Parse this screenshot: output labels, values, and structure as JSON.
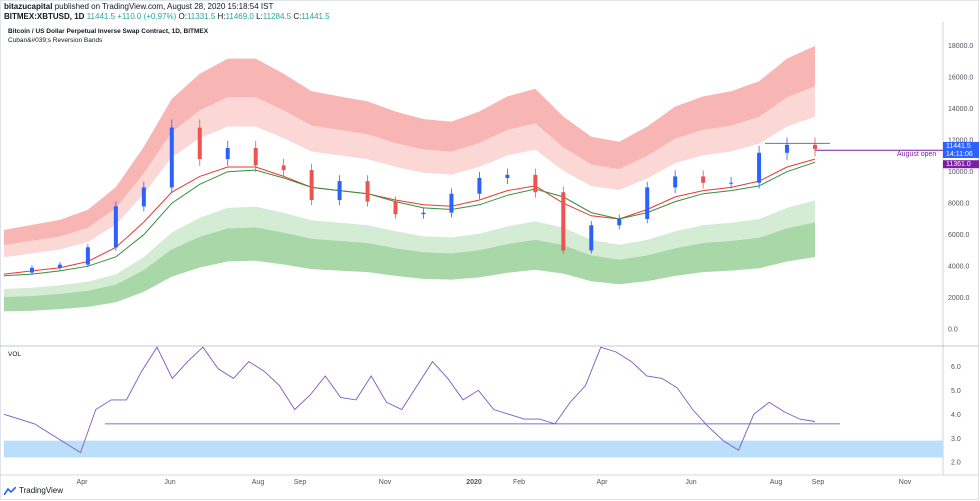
{
  "header": {
    "publisher": "bitazucapital",
    "published_text": "published on TradingView.com, August 28, 2020 15:18:54 IST",
    "symbol": "BITMEX:XBTUSD, 1D",
    "last": "11441.5",
    "change": "+110.0 (+0.97%)",
    "o_label": "O:",
    "o": "11331.5",
    "h_label": "H:",
    "h": "11469.0",
    "l_label": "L:",
    "l": "11284.5",
    "c_label": "C:",
    "c": "11441.5"
  },
  "footer": {
    "brand": "TradingView"
  },
  "colors": {
    "up": "#26a69a",
    "down": "#ef5350",
    "candle_up": "#2962ff",
    "band_red_outer": "#f7b6b3",
    "band_red_inner": "#fbd7d5",
    "band_green_outer": "#a8d8a8",
    "band_green_inner": "#d3ecd3",
    "mid_red": "#e53935",
    "mid_green": "#388e3c",
    "vol_line": "#7e57c2",
    "vol_band": "#bbdefb"
  },
  "chart_data": [
    {
      "type": "line",
      "title": "Bitcoin / US Dollar Perpetual Inverse Swap Contract, 1D, BITMEX",
      "subtitle": "Cuban&#039;s Reversion Bands",
      "x_ticks": [
        "Apr",
        "Jun",
        "Aug",
        "Sep",
        "Nov",
        "2020",
        "Feb",
        "Apr",
        "Jun",
        "Aug",
        "Sep",
        "Nov"
      ],
      "y_ticks": [
        "0.0",
        "2000.0",
        "4000.0",
        "6000.0",
        "8000.0",
        "10000.0",
        "12000.0",
        "14000.0",
        "16000.0",
        "18000.0"
      ],
      "ylim": [
        -1000,
        19500
      ],
      "price_labels": {
        "last": "11441.5",
        "countdown": "14:11:06",
        "level": "11361.0"
      },
      "annotation": "August open",
      "series": [
        {
          "values": [
            3600,
            3900,
            4100,
            5200,
            7800,
            9000,
            12800,
            10800,
            11500,
            10400,
            10100,
            8200,
            9400,
            8100,
            7300,
            7400,
            8600,
            9600,
            9800,
            8700,
            5000,
            6600,
            7000,
            9000,
            9700,
            9300,
            9300,
            11200,
            11700,
            11441.5
          ]
        },
        {
          "values": [
            3500,
            3700,
            3900,
            4300,
            5200,
            6800,
            8700,
            9700,
            10300,
            10300,
            9700,
            9000,
            8800,
            8600,
            8200,
            7900,
            7800,
            8200,
            8800,
            9100,
            8000,
            7200,
            7000,
            7600,
            8400,
            8800,
            9000,
            9400,
            10300,
            10800
          ]
        },
        {
          "values": [
            3400,
            3500,
            3700,
            4000,
            4600,
            6000,
            8000,
            9200,
            10000,
            10100,
            9600,
            9000,
            8800,
            8600,
            8100,
            7700,
            7600,
            7900,
            8500,
            8900,
            8400,
            7400,
            7000,
            7400,
            8100,
            8600,
            8800,
            9100,
            10000,
            10600
          ]
        }
      ]
    },
    {
      "type": "line",
      "title": "VOL",
      "y_ticks": [
        "2.0",
        "3.0",
        "4.0",
        "5.0",
        "6.0"
      ],
      "ylim": [
        1.8,
        6.6
      ],
      "hline": 3.6,
      "band": [
        2.2,
        2.9
      ],
      "series": [
        {
          "values": [
            4.0,
            3.8,
            3.6,
            3.2,
            2.8,
            2.4,
            4.2,
            4.6,
            4.6,
            5.8,
            6.8,
            5.5,
            6.2,
            6.9,
            5.9,
            5.5,
            6.2,
            5.8,
            5.2,
            4.2,
            4.8,
            5.6,
            4.7,
            4.6,
            5.6,
            4.5,
            4.2,
            5.2,
            6.2,
            5.5,
            4.6,
            5.0,
            4.2,
            4.0,
            3.8,
            3.8,
            3.6,
            4.5,
            5.2,
            6.8,
            6.6,
            6.2,
            5.6,
            5.5,
            5.1,
            4.2,
            3.5,
            2.9,
            2.5,
            4.0,
            4.5,
            4.1,
            3.8,
            3.7
          ]
        }
      ]
    }
  ]
}
